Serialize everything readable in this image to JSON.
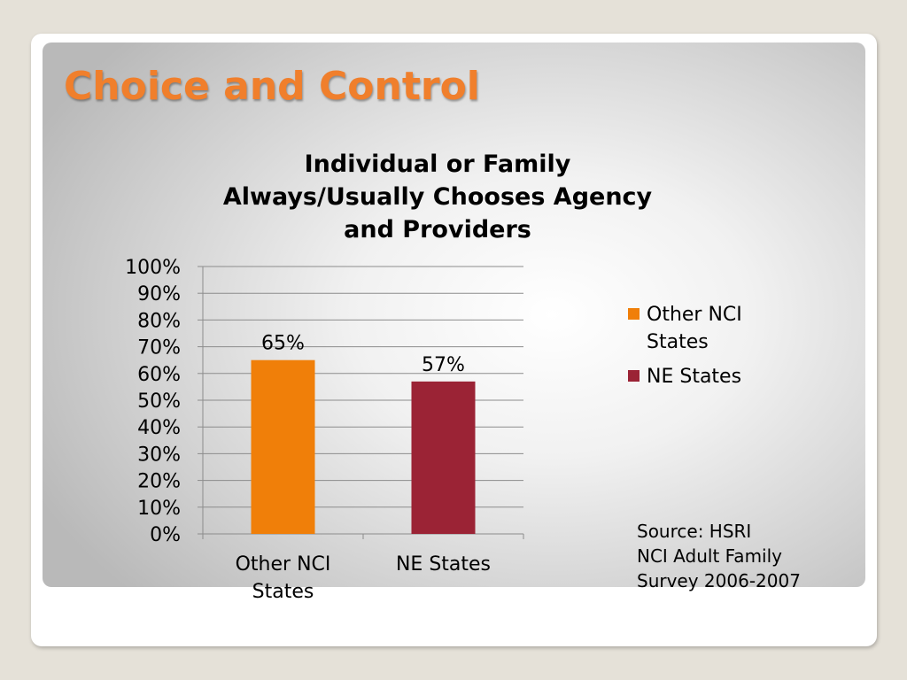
{
  "slide": {
    "title": "Choice and Control"
  },
  "chart_data": {
    "type": "bar",
    "title": "Individual or Family Always/Usually Chooses Agency and Providers",
    "title_lines": [
      "Individual or Family",
      "Always/Usually Chooses Agency",
      "and Providers"
    ],
    "categories": [
      "Other NCI States",
      "NE States"
    ],
    "category_lines": [
      [
        "Other NCI",
        "States"
      ],
      [
        "NE States"
      ]
    ],
    "values": [
      65,
      57
    ],
    "data_labels": [
      "65%",
      "57%"
    ],
    "colors": [
      "#f07f09",
      "#9b2335"
    ],
    "ylim": [
      0,
      100
    ],
    "y_ticks": [
      0,
      10,
      20,
      30,
      40,
      50,
      60,
      70,
      80,
      90,
      100
    ],
    "y_tick_labels": [
      "0%",
      "10%",
      "20%",
      "30%",
      "40%",
      "50%",
      "60%",
      "70%",
      "80%",
      "90%",
      "100%"
    ],
    "grid": true,
    "legend_position": "right",
    "legend": [
      {
        "lines": [
          "Other NCI",
          "States"
        ],
        "color": "#f07f09"
      },
      {
        "lines": [
          "NE States"
        ],
        "color": "#9b2335"
      }
    ],
    "xlabel": "",
    "ylabel": ""
  },
  "source_note": {
    "lines": [
      "Source:  HSRI",
      "NCI Adult Family",
      "Survey 2006-2007"
    ]
  },
  "colors": {
    "title": "#f07f2c",
    "gridline": "#8c8c8c"
  }
}
